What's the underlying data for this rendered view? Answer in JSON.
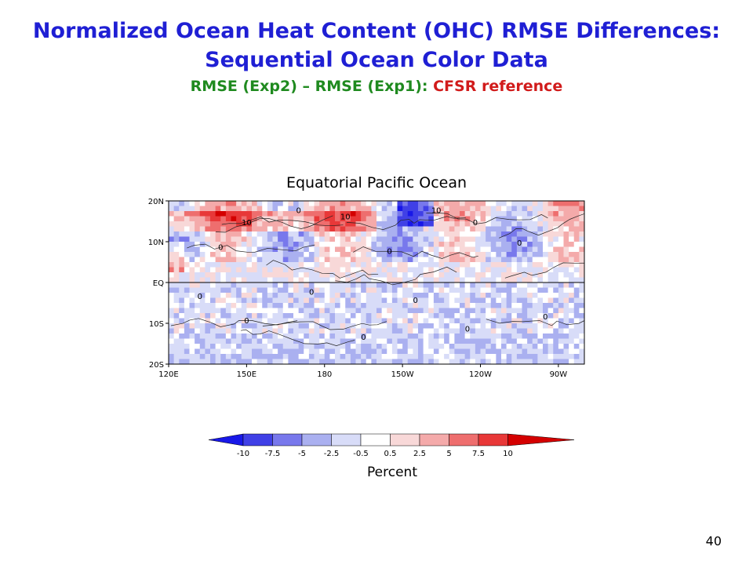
{
  "slide": {
    "title_line1": "Normalized Ocean Heat Content (OHC) RMSE Differences:",
    "title_line2": "Sequential Ocean Color Data",
    "subtitle_green": "RMSE (Exp2) – RMSE (Exp1):",
    "subtitle_red": "CFSR reference",
    "page_number": "40"
  },
  "colors": {
    "title": "#1f1fd4",
    "subtitle_green": "#1f8a1f",
    "subtitle_red": "#d11b1b"
  },
  "chart_data": {
    "type": "heatmap",
    "title": "Equatorial Pacific Ocean",
    "x_tick_labels": [
      "120E",
      "150E",
      "180",
      "150W",
      "120W",
      "90W"
    ],
    "y_tick_labels": [
      "20N",
      "10N",
      "EQ",
      "10S",
      "20S"
    ],
    "xlim": [
      120,
      280
    ],
    "ylim": [
      -20,
      20
    ],
    "contour_labels": [
      "0",
      "10"
    ],
    "colorbar": {
      "label": "Percent",
      "tick_labels": [
        "-10",
        "-7.5",
        "-5",
        "-2.5",
        "-0.5",
        "0.5",
        "2.5",
        "5",
        "7.5",
        "10"
      ],
      "colors": [
        "#1818e8",
        "#4040e6",
        "#7878ec",
        "#aab0f0",
        "#d8dcf8",
        "#ffffff",
        "#f8d8d8",
        "#f4aaaa",
        "#ee6e6e",
        "#e83838",
        "#d40000"
      ]
    }
  }
}
